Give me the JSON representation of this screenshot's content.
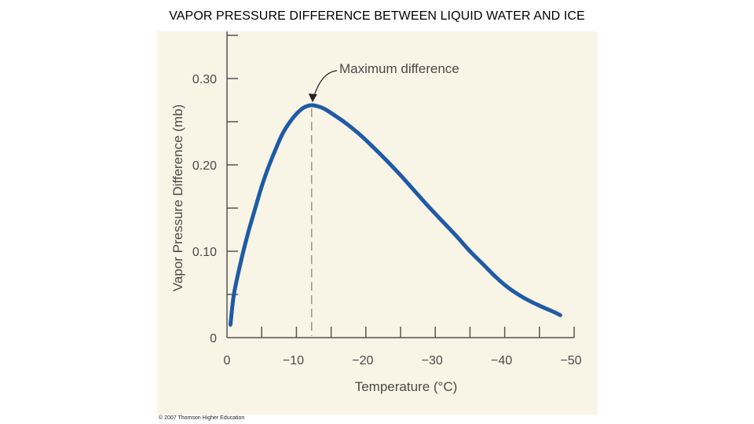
{
  "page": {
    "title": "VAPOR PRESSURE DIFFERENCE BETWEEN LIQUID WATER AND ICE"
  },
  "colors": {
    "curve": "#1f5aa6",
    "panel": "#f8f4e6",
    "axis": "#555555",
    "text": "#4a4a4a"
  },
  "chart_data": {
    "type": "line",
    "title": "VAPOR PRESSURE DIFFERENCE BETWEEN LIQUID WATER AND ICE",
    "xlabel": "Temperature (°C)",
    "ylabel": "Vapor Pressure Difference (mb)",
    "xlim": [
      0,
      -50
    ],
    "ylim": [
      0,
      0.35
    ],
    "x_ticks": [
      0,
      -5,
      -10,
      -15,
      -20,
      -25,
      -30,
      -35,
      -40,
      -45,
      -50
    ],
    "x_tick_labels": [
      {
        "value": 0,
        "label": "0"
      },
      {
        "value": -10,
        "label": "−10"
      },
      {
        "value": -20,
        "label": "−20"
      },
      {
        "value": -30,
        "label": "−30"
      },
      {
        "value": -40,
        "label": "−40"
      },
      {
        "value": -50,
        "label": "−50"
      }
    ],
    "y_ticks": [
      0.05,
      0.1,
      0.15,
      0.2,
      0.25,
      0.3,
      0.35
    ],
    "y_tick_labels": [
      {
        "value": 0,
        "label": "0"
      },
      {
        "value": 0.1,
        "label": "0.10"
      },
      {
        "value": 0.2,
        "label": "0.20"
      },
      {
        "value": 0.3,
        "label": "0.30"
      }
    ],
    "series": [
      {
        "name": "Vapor pressure difference",
        "x": [
          -0.5,
          -1,
          -2,
          -3,
          -4,
          -5,
          -6,
          -7,
          -8,
          -9,
          -10,
          -11,
          -12,
          -13,
          -14,
          -15,
          -17,
          -19,
          -21,
          -23,
          -25,
          -27,
          -29,
          -31,
          -33,
          -35,
          -37,
          -39,
          -41,
          -43,
          -45,
          -47,
          -48
        ],
        "y": [
          0.015,
          0.05,
          0.088,
          0.12,
          0.148,
          0.175,
          0.198,
          0.218,
          0.236,
          0.249,
          0.259,
          0.266,
          0.269,
          0.268,
          0.265,
          0.26,
          0.249,
          0.236,
          0.221,
          0.205,
          0.188,
          0.17,
          0.152,
          0.135,
          0.118,
          0.1,
          0.084,
          0.068,
          0.055,
          0.045,
          0.037,
          0.03,
          0.026
        ]
      }
    ],
    "annotation": {
      "text": "Maximum difference",
      "x": -12.2,
      "y": 0.269
    }
  },
  "credit": "© 2007 Thomson Higher Education"
}
